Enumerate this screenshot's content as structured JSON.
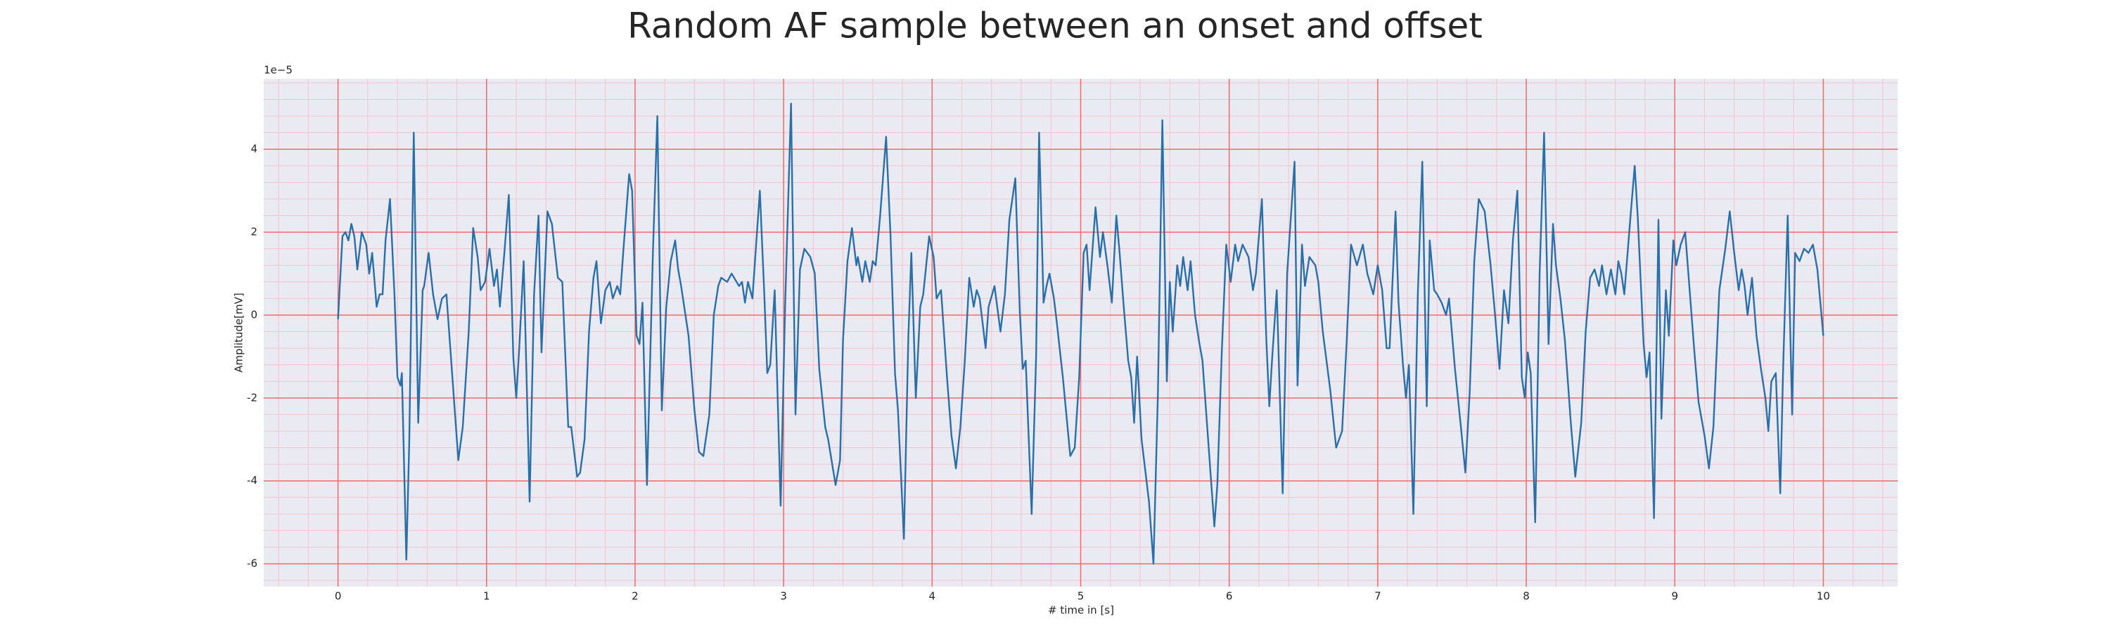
{
  "chart_data": {
    "type": "line",
    "title": "Random AF sample between an onset and offset",
    "x_label": "# time in [s]",
    "y_label": "Amplitude[mV]",
    "y_offset_label": "1e−5",
    "color": "#2a6fa8",
    "background": "#eaeaf2",
    "grid": true,
    "grid_color": "#f26a6a",
    "minor_grid": true,
    "minor_grid_color": "#f4c4cc",
    "xlim": [
      -0.5,
      10.5
    ],
    "ylim": [
      -6.55,
      5.7
    ],
    "xticks": [
      0,
      1,
      2,
      3,
      4,
      5,
      6,
      7,
      8,
      9,
      10
    ],
    "yticks": [
      -6,
      -4,
      -2,
      0,
      2,
      4
    ],
    "x": [
      0,
      0.03,
      0.05,
      0.07,
      0.09,
      0.11,
      0.13,
      0.16,
      0.19,
      0.21,
      0.23,
      0.26,
      0.28,
      0.3,
      0.32,
      0.35,
      0.38,
      0.4,
      0.42,
      0.43,
      0.46,
      0.48,
      0.51,
      0.54,
      0.57,
      0.58,
      0.61,
      0.64,
      0.67,
      0.7,
      0.73,
      0.77,
      0.81,
      0.84,
      0.88,
      0.91,
      0.94,
      0.96,
      0.99,
      1.02,
      1.05,
      1.07,
      1.09,
      1.12,
      1.15,
      1.18,
      1.2,
      1.22,
      1.25,
      1.29,
      1.32,
      1.35,
      1.37,
      1.41,
      1.44,
      1.48,
      1.51,
      1.55,
      1.57,
      1.61,
      1.63,
      1.66,
      1.69,
      1.72,
      1.74,
      1.77,
      1.8,
      1.83,
      1.85,
      1.88,
      1.9,
      1.92,
      1.96,
      1.98,
      2.01,
      2.03,
      2.05,
      2.08,
      2.12,
      2.15,
      2.18,
      2.21,
      2.24,
      2.27,
      2.29,
      2.31,
      2.36,
      2.4,
      2.43,
      2.46,
      2.5,
      2.53,
      2.56,
      2.58,
      2.62,
      2.65,
      2.7,
      2.72,
      2.74,
      2.76,
      2.79,
      2.84,
      2.87,
      2.89,
      2.91,
      2.94,
      2.98,
      3.01,
      3.05,
      3.08,
      3.11,
      3.14,
      3.18,
      3.21,
      3.24,
      3.28,
      3.3,
      3.35,
      3.38,
      3.4,
      3.43,
      3.46,
      3.49,
      3.5,
      3.53,
      3.55,
      3.58,
      3.6,
      3.62,
      3.65,
      3.69,
      3.72,
      3.75,
      3.77,
      3.81,
      3.84,
      3.86,
      3.89,
      3.92,
      3.94,
      3.98,
      4.01,
      4.03,
      4.06,
      4.1,
      4.13,
      4.16,
      4.19,
      4.22,
      4.25,
      4.28,
      4.3,
      4.32,
      4.36,
      4.38,
      4.42,
      4.46,
      4.49,
      4.52,
      4.56,
      4.59,
      4.61,
      4.63,
      4.67,
      4.7,
      4.72,
      4.75,
      4.77,
      4.79,
      4.82,
      4.84,
      4.88,
      4.93,
      4.96,
      4.99,
      5.02,
      5.04,
      5.06,
      5.1,
      5.13,
      5.15,
      5.18,
      5.21,
      5.24,
      5.26,
      5.29,
      5.32,
      5.34,
      5.36,
      5.38,
      5.41,
      5.46,
      5.49,
      5.52,
      5.55,
      5.58,
      5.6,
      5.62,
      5.65,
      5.67,
      5.69,
      5.72,
      5.74,
      5.77,
      5.8,
      5.82,
      5.86,
      5.9,
      5.92,
      5.95,
      5.98,
      6.01,
      6.04,
      6.06,
      6.09,
      6.13,
      6.16,
      6.18,
      6.22,
      6.25,
      6.27,
      6.29,
      6.32,
      6.36,
      6.39,
      6.44,
      6.46,
      6.49,
      6.51,
      6.54,
      6.58,
      6.6,
      6.63,
      6.68,
      6.72,
      6.76,
      6.79,
      6.82,
      6.86,
      6.9,
      6.93,
      6.97,
      7.0,
      7.03,
      7.06,
      7.08,
      7.12,
      7.14,
      7.17,
      7.19,
      7.21,
      7.24,
      7.27,
      7.3,
      7.33,
      7.35,
      7.38,
      7.4,
      7.43,
      7.46,
      7.48,
      7.52,
      7.56,
      7.59,
      7.62,
      7.65,
      7.68,
      7.72,
      7.76,
      7.79,
      7.82,
      7.85,
      7.88,
      7.91,
      7.94,
      7.97,
      7.99,
      8.01,
      8.03,
      8.06,
      8.09,
      8.12,
      8.15,
      8.18,
      8.2,
      8.23,
      8.26,
      8.3,
      8.33,
      8.37,
      8.4,
      8.43,
      8.46,
      8.49,
      8.51,
      8.54,
      8.57,
      8.6,
      8.62,
      8.64,
      8.66,
      8.7,
      8.73,
      8.75,
      8.79,
      8.81,
      8.83,
      8.86,
      8.89,
      8.91,
      8.94,
      8.96,
      8.99,
      9.01,
      9.04,
      9.07,
      9.1,
      9.13,
      9.16,
      9.2,
      9.23,
      9.26,
      9.3,
      9.34,
      9.37,
      9.4,
      9.43,
      9.45,
      9.47,
      9.49,
      9.52,
      9.55,
      9.58,
      9.61,
      9.63,
      9.65,
      9.68,
      9.71,
      9.73,
      9.76,
      9.79,
      9.81,
      9.84,
      9.87,
      9.9,
      9.93,
      9.96,
      10.0
    ],
    "values": [
      -0.1,
      1.9,
      2.0,
      1.8,
      2.2,
      1.9,
      1.1,
      2.0,
      1.7,
      1.0,
      1.5,
      0.2,
      0.5,
      0.5,
      1.8,
      2.8,
      0.5,
      -1.5,
      -1.7,
      -1.4,
      -5.9,
      -3.0,
      4.4,
      -2.6,
      0.6,
      0.7,
      1.5,
      0.5,
      -0.1,
      0.4,
      0.5,
      -1.5,
      -3.5,
      -2.7,
      -0.4,
      2.1,
      1.4,
      0.6,
      0.8,
      1.6,
      0.7,
      1.1,
      0.2,
      1.5,
      2.9,
      -1.0,
      -2.0,
      -0.8,
      1.3,
      -4.5,
      0.5,
      2.4,
      -0.9,
      2.5,
      2.2,
      0.9,
      0.8,
      -2.7,
      -2.7,
      -3.9,
      -3.8,
      -3.0,
      -0.4,
      0.9,
      1.3,
      -0.2,
      0.6,
      0.8,
      0.4,
      0.7,
      0.5,
      1.5,
      3.4,
      3.0,
      -0.5,
      -0.7,
      0.3,
      -4.1,
      1.5,
      4.8,
      -2.3,
      0.2,
      1.3,
      1.8,
      1.1,
      0.7,
      -0.5,
      -2.3,
      -3.3,
      -3.4,
      -2.4,
      0.0,
      0.7,
      0.9,
      0.8,
      1.0,
      0.7,
      0.8,
      0.3,
      0.8,
      0.4,
      3.0,
      0.5,
      -1.4,
      -1.2,
      0.6,
      -4.6,
      0.2,
      5.1,
      -2.4,
      1.1,
      1.6,
      1.4,
      1.0,
      -1.3,
      -2.7,
      -3.0,
      -4.1,
      -3.5,
      -0.6,
      1.3,
      2.1,
      1.2,
      1.4,
      0.8,
      1.3,
      0.8,
      1.3,
      1.2,
      2.4,
      4.3,
      1.9,
      -1.4,
      -2.3,
      -5.4,
      -0.5,
      1.5,
      -2.0,
      0.2,
      0.5,
      1.9,
      1.4,
      0.4,
      0.6,
      -1.5,
      -2.9,
      -3.7,
      -2.7,
      -1.1,
      0.9,
      0.2,
      0.6,
      0.4,
      -0.8,
      0.2,
      0.7,
      -0.4,
      0.5,
      2.3,
      3.3,
      0.1,
      -1.3,
      -1.1,
      -4.8,
      -1.0,
      4.4,
      0.3,
      0.7,
      1.0,
      0.4,
      -0.2,
      -1.5,
      -3.4,
      -3.2,
      -1.5,
      1.5,
      1.7,
      0.6,
      2.6,
      1.4,
      2.0,
      1.2,
      0.3,
      2.4,
      1.6,
      0.2,
      -1.1,
      -1.5,
      -2.6,
      -1.0,
      -3.0,
      -4.5,
      -6.0,
      -1.9,
      4.7,
      -1.6,
      0.8,
      -0.4,
      1.2,
      0.7,
      1.4,
      0.6,
      1.3,
      0.0,
      -0.7,
      -1.1,
      -3.1,
      -5.1,
      -4.1,
      -0.9,
      1.7,
      0.8,
      1.7,
      1.3,
      1.7,
      1.4,
      0.6,
      1.0,
      2.8,
      -0.6,
      -2.2,
      -1.0,
      0.6,
      -4.3,
      1.0,
      3.7,
      -1.7,
      1.7,
      0.7,
      1.4,
      1.2,
      0.8,
      -0.4,
      -1.8,
      -3.2,
      -2.8,
      -0.7,
      1.7,
      1.2,
      1.7,
      1.0,
      0.5,
      1.2,
      0.6,
      -0.8,
      -0.8,
      2.5,
      0.3,
      -1.2,
      -2.0,
      -1.2,
      -4.8,
      0.5,
      3.7,
      -2.2,
      1.8,
      0.6,
      0.5,
      0.3,
      0.0,
      0.4,
      -1.3,
      -2.7,
      -3.8,
      -1.8,
      1.3,
      2.8,
      2.5,
      1.2,
      0.0,
      -1.3,
      0.6,
      -0.2,
      1.8,
      3.0,
      -1.5,
      -2.0,
      -0.9,
      -1.4,
      -5.0,
      1.0,
      4.4,
      -0.7,
      2.2,
      1.2,
      0.4,
      -0.6,
      -2.6,
      -3.9,
      -2.6,
      -0.4,
      0.9,
      1.1,
      0.7,
      1.2,
      0.5,
      1.1,
      0.5,
      1.3,
      1.0,
      0.5,
      2.3,
      3.6,
      2.4,
      -0.7,
      -1.5,
      -0.9,
      -4.9,
      2.3,
      -2.5,
      0.6,
      -0.5,
      1.8,
      1.2,
      1.7,
      2.0,
      0.6,
      -0.8,
      -2.1,
      -2.9,
      -3.7,
      -2.7,
      0.6,
      1.6,
      2.5,
      1.5,
      0.6,
      1.1,
      0.7,
      0.0,
      0.9,
      -0.5,
      -1.3,
      -2.0,
      -2.8,
      -1.6,
      -1.4,
      -4.3,
      -1.2,
      2.4,
      -2.4,
      1.5,
      1.3,
      1.6,
      1.5,
      1.7,
      1.1,
      -0.5
    ]
  }
}
